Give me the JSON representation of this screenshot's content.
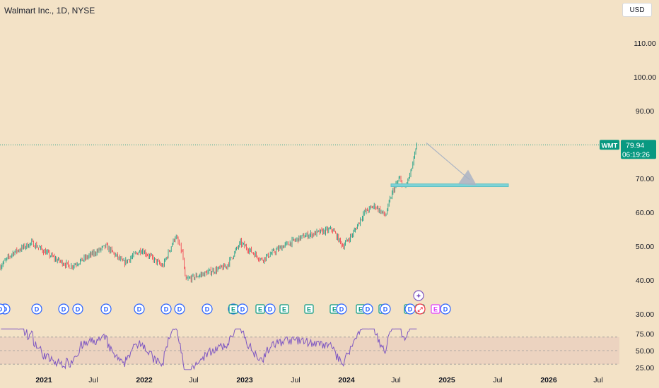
{
  "header": {
    "title": "Walmart Inc., 1D, NYSE",
    "currency": "USD"
  },
  "price_axis": {
    "ticks": [
      {
        "value": 110,
        "label": "110.00"
      },
      {
        "value": 100,
        "label": "100.00"
      },
      {
        "value": 90,
        "label": "90.00"
      },
      {
        "value": 70,
        "label": "70.00"
      },
      {
        "value": 60,
        "label": "60.00"
      },
      {
        "value": 50,
        "label": "50.00"
      },
      {
        "value": 40,
        "label": "40.00"
      },
      {
        "value": 30,
        "label": "30.00"
      }
    ]
  },
  "last_price": {
    "symbol": "WMT",
    "price": "79.94",
    "countdown": "06:19:26",
    "value": 79.94,
    "color": "#089981"
  },
  "rsi_axis": {
    "ticks": [
      {
        "value": 75,
        "label": "75.00"
      },
      {
        "value": 50,
        "label": "50.00"
      },
      {
        "value": 25,
        "label": "25.00"
      }
    ],
    "upper_band": 70,
    "lower_band": 30,
    "line_color": "#7e57c2"
  },
  "time_axis": {
    "labels": [
      {
        "text": "2021",
        "bold": true
      },
      {
        "text": "Jul",
        "bold": false
      },
      {
        "text": "2022",
        "bold": true
      },
      {
        "text": "Jul",
        "bold": false
      },
      {
        "text": "2023",
        "bold": true
      },
      {
        "text": "Jul",
        "bold": false
      },
      {
        "text": "2024",
        "bold": true
      },
      {
        "text": "Jul",
        "bold": false
      },
      {
        "text": "2025",
        "bold": true
      },
      {
        "text": "Jul",
        "bold": false
      },
      {
        "text": "2026",
        "bold": true
      },
      {
        "text": "Jul",
        "bold": false
      }
    ]
  },
  "support_zone": {
    "low": 67.6,
    "high": 68.4,
    "color": "#7fd3d6"
  },
  "arrow_annotation": {
    "from_price": 80.5,
    "to_price": 68.0,
    "color": "#a9b3c4"
  },
  "event_markers": [
    {
      "type": "dividend",
      "letter": "D"
    },
    {
      "type": "dividend",
      "letter": "D"
    },
    {
      "type": "dividend",
      "letter": "D"
    },
    {
      "type": "dividend",
      "letter": "D"
    },
    {
      "type": "dividend",
      "letter": "D"
    },
    {
      "type": "dividend",
      "letter": "D"
    },
    {
      "type": "dividend",
      "letter": "D"
    },
    {
      "type": "dividend",
      "letter": "D"
    },
    {
      "type": "dividend",
      "letter": "D"
    },
    {
      "type": "dividend",
      "letter": "D"
    },
    {
      "type": "earnings",
      "letter": "E"
    },
    {
      "type": "earnings",
      "letter": "E"
    },
    {
      "type": "earnings",
      "letter": "E"
    },
    {
      "type": "earnings",
      "letter": "E"
    },
    {
      "type": "earnings",
      "letter": "E"
    },
    {
      "type": "earnings",
      "letter": "E"
    },
    {
      "type": "earnings",
      "letter": "E"
    },
    {
      "type": "earnings",
      "letter": "E"
    },
    {
      "type": "earnings",
      "letter": "E"
    },
    {
      "type": "dividend",
      "letter": "D"
    },
    {
      "type": "dividend",
      "letter": "D"
    },
    {
      "type": "dividend",
      "letter": "D"
    },
    {
      "type": "dividend",
      "letter": "D"
    },
    {
      "type": "dividend",
      "letter": "D"
    },
    {
      "type": "dividend",
      "letter": "D"
    },
    {
      "type": "dividend",
      "letter": "D"
    },
    {
      "type": "split",
      "letter": "⤢"
    },
    {
      "type": "news",
      "letter": "✦"
    },
    {
      "type": "earnings-upcoming",
      "letter": "E"
    },
    {
      "type": "dividend",
      "letter": "D"
    }
  ],
  "colors": {
    "background": "#f3e2c6",
    "up": "#089981",
    "down": "#f23645",
    "axis_text": "#131722"
  }
}
